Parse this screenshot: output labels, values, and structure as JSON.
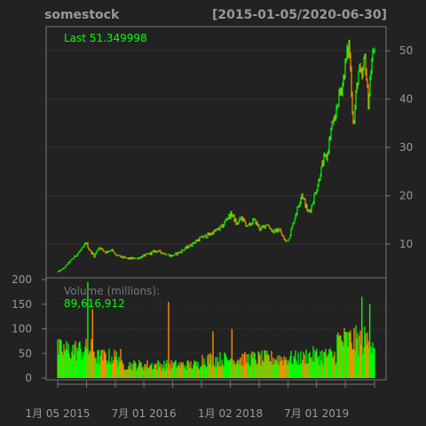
{
  "chart_data": {
    "type": "candlestick",
    "title": "somestock",
    "date_range": "[2015-01-05/2020-06-30]",
    "last_label": "Last 51.349998",
    "price_axis": {
      "ticks": [
        10,
        20,
        30,
        40,
        50
      ],
      "ylim": [
        3,
        55
      ]
    },
    "price_path": [
      {
        "x": 0.0,
        "y": 4.2
      },
      {
        "x": 0.02,
        "y": 5.0
      },
      {
        "x": 0.04,
        "y": 6.5
      },
      {
        "x": 0.06,
        "y": 7.8
      },
      {
        "x": 0.08,
        "y": 9.2
      },
      {
        "x": 0.09,
        "y": 10.3
      },
      {
        "x": 0.1,
        "y": 8.8
      },
      {
        "x": 0.115,
        "y": 7.5
      },
      {
        "x": 0.13,
        "y": 9.4
      },
      {
        "x": 0.15,
        "y": 8.3
      },
      {
        "x": 0.17,
        "y": 8.8
      },
      {
        "x": 0.18,
        "y": 7.8
      },
      {
        "x": 0.2,
        "y": 7.3
      },
      {
        "x": 0.22,
        "y": 7.0
      },
      {
        "x": 0.25,
        "y": 7.0
      },
      {
        "x": 0.27,
        "y": 7.5
      },
      {
        "x": 0.29,
        "y": 8.0
      },
      {
        "x": 0.31,
        "y": 8.6
      },
      {
        "x": 0.33,
        "y": 8.2
      },
      {
        "x": 0.36,
        "y": 7.5
      },
      {
        "x": 0.39,
        "y": 8.5
      },
      {
        "x": 0.42,
        "y": 9.8
      },
      {
        "x": 0.45,
        "y": 11.2
      },
      {
        "x": 0.48,
        "y": 12.0
      },
      {
        "x": 0.5,
        "y": 12.8
      },
      {
        "x": 0.52,
        "y": 13.6
      },
      {
        "x": 0.535,
        "y": 15.5
      },
      {
        "x": 0.55,
        "y": 16.2
      },
      {
        "x": 0.565,
        "y": 14.0
      },
      {
        "x": 0.58,
        "y": 15.5
      },
      {
        "x": 0.6,
        "y": 13.5
      },
      {
        "x": 0.62,
        "y": 15.0
      },
      {
        "x": 0.64,
        "y": 13.0
      },
      {
        "x": 0.66,
        "y": 14.2
      },
      {
        "x": 0.68,
        "y": 12.5
      },
      {
        "x": 0.7,
        "y": 13.0
      },
      {
        "x": 0.71,
        "y": 11.5
      },
      {
        "x": 0.72,
        "y": 10.5
      },
      {
        "x": 0.73,
        "y": 11.3
      },
      {
        "x": 0.74,
        "y": 13.5
      },
      {
        "x": 0.75,
        "y": 16.0
      },
      {
        "x": 0.76,
        "y": 18.0
      },
      {
        "x": 0.77,
        "y": 20.5
      },
      {
        "x": 0.78,
        "y": 18.5
      },
      {
        "x": 0.79,
        "y": 16.5
      },
      {
        "x": 0.8,
        "y": 17.5
      },
      {
        "x": 0.81,
        "y": 20.0
      },
      {
        "x": 0.82,
        "y": 22.0
      },
      {
        "x": 0.83,
        "y": 25.0
      },
      {
        "x": 0.84,
        "y": 27.5
      },
      {
        "x": 0.85,
        "y": 28.0
      },
      {
        "x": 0.86,
        "y": 32.5
      },
      {
        "x": 0.87,
        "y": 36.0
      },
      {
        "x": 0.875,
        "y": 34.0
      },
      {
        "x": 0.88,
        "y": 38.5
      },
      {
        "x": 0.89,
        "y": 41.0
      },
      {
        "x": 0.9,
        "y": 43.5
      },
      {
        "x": 0.91,
        "y": 48.0
      },
      {
        "x": 0.92,
        "y": 51.5
      },
      {
        "x": 0.925,
        "y": 45.0
      },
      {
        "x": 0.93,
        "y": 38.0
      },
      {
        "x": 0.935,
        "y": 34.5
      },
      {
        "x": 0.94,
        "y": 40.0
      },
      {
        "x": 0.95,
        "y": 46.0
      },
      {
        "x": 0.96,
        "y": 44.0
      },
      {
        "x": 0.97,
        "y": 49.0
      },
      {
        "x": 0.98,
        "y": 39.0
      },
      {
        "x": 0.99,
        "y": 47.0
      },
      {
        "x": 1.0,
        "y": 51.3
      }
    ],
    "volume_panel": {
      "label": "Volume (millions):",
      "value": "89,616,912",
      "ticks": [
        0,
        50,
        100,
        150,
        200
      ],
      "ylim": [
        0,
        200
      ],
      "spikes": [
        {
          "x": 0.095,
          "value": 195,
          "color": "#00ff00"
        },
        {
          "x": 0.11,
          "value": 140,
          "color": "#ff8c00"
        },
        {
          "x": 0.35,
          "value": 155,
          "color": "#ff8c00"
        },
        {
          "x": 0.49,
          "value": 95,
          "color": "#ff8c00"
        },
        {
          "x": 0.55,
          "value": 100,
          "color": "#ff8c00"
        },
        {
          "x": 0.96,
          "value": 165,
          "color": "#00ff00"
        },
        {
          "x": 0.985,
          "value": 150,
          "color": "#00ff00"
        }
      ]
    },
    "x_axis_labels": [
      {
        "label": "1月 05 2015",
        "x": 0.0
      },
      {
        "label": "7月 01 2016",
        "x": 0.272
      },
      {
        "label": "1月 02 2018",
        "x": 0.545
      },
      {
        "label": "7月 01 2019",
        "x": 0.817
      }
    ],
    "x_minor_ticks": [
      0.0,
      0.091,
      0.182,
      0.272,
      0.363,
      0.454,
      0.545,
      0.636,
      0.727,
      0.817,
      0.908,
      1.0
    ],
    "colors": {
      "background": "#222222",
      "up": "#00ff00",
      "down": "#ff8c00",
      "axis_text": "#999999",
      "last_text": "#00ff00",
      "grid": "#333333",
      "frame": "#777777"
    },
    "grid": true
  }
}
